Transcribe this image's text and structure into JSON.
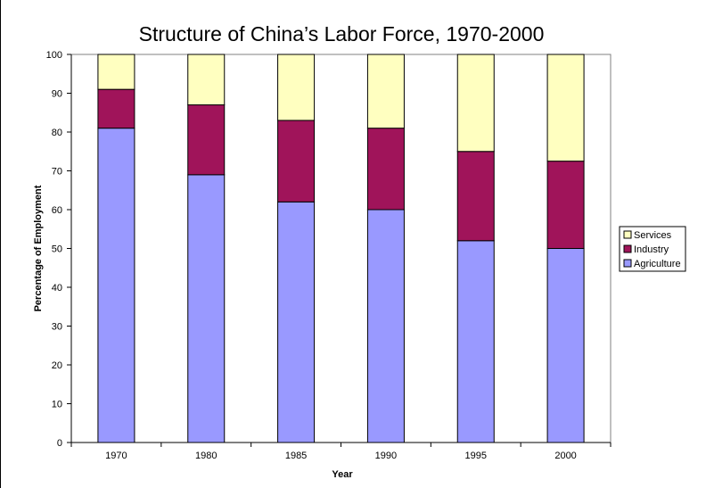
{
  "chart_data": {
    "type": "bar",
    "stacked": true,
    "title": "Structure of China’s Labor Force, 1970-2000",
    "xlabel": "Year",
    "ylabel": "Percentage of Employment",
    "ylim": [
      0,
      100
    ],
    "yticks": [
      "0",
      "10",
      "20",
      "30",
      "40",
      "50",
      "60",
      "70",
      "80",
      "90",
      "100"
    ],
    "categories": [
      "1970",
      "1980",
      "1985",
      "1990",
      "1995",
      "2000"
    ],
    "series": [
      {
        "name": "Agriculture",
        "color": "#9999ff",
        "values": [
          81,
          69,
          62,
          60,
          52,
          50
        ]
      },
      {
        "name": "Industry",
        "color": "#a0145a",
        "values": [
          10,
          18,
          21,
          21,
          23,
          22.5
        ]
      },
      {
        "name": "Services",
        "color": "#ffffc0",
        "values": [
          9,
          13,
          17,
          19,
          25,
          27.5
        ]
      }
    ],
    "legend_order": [
      "Services",
      "Industry",
      "Agriculture"
    ],
    "legend_position": "right",
    "grid": false
  }
}
